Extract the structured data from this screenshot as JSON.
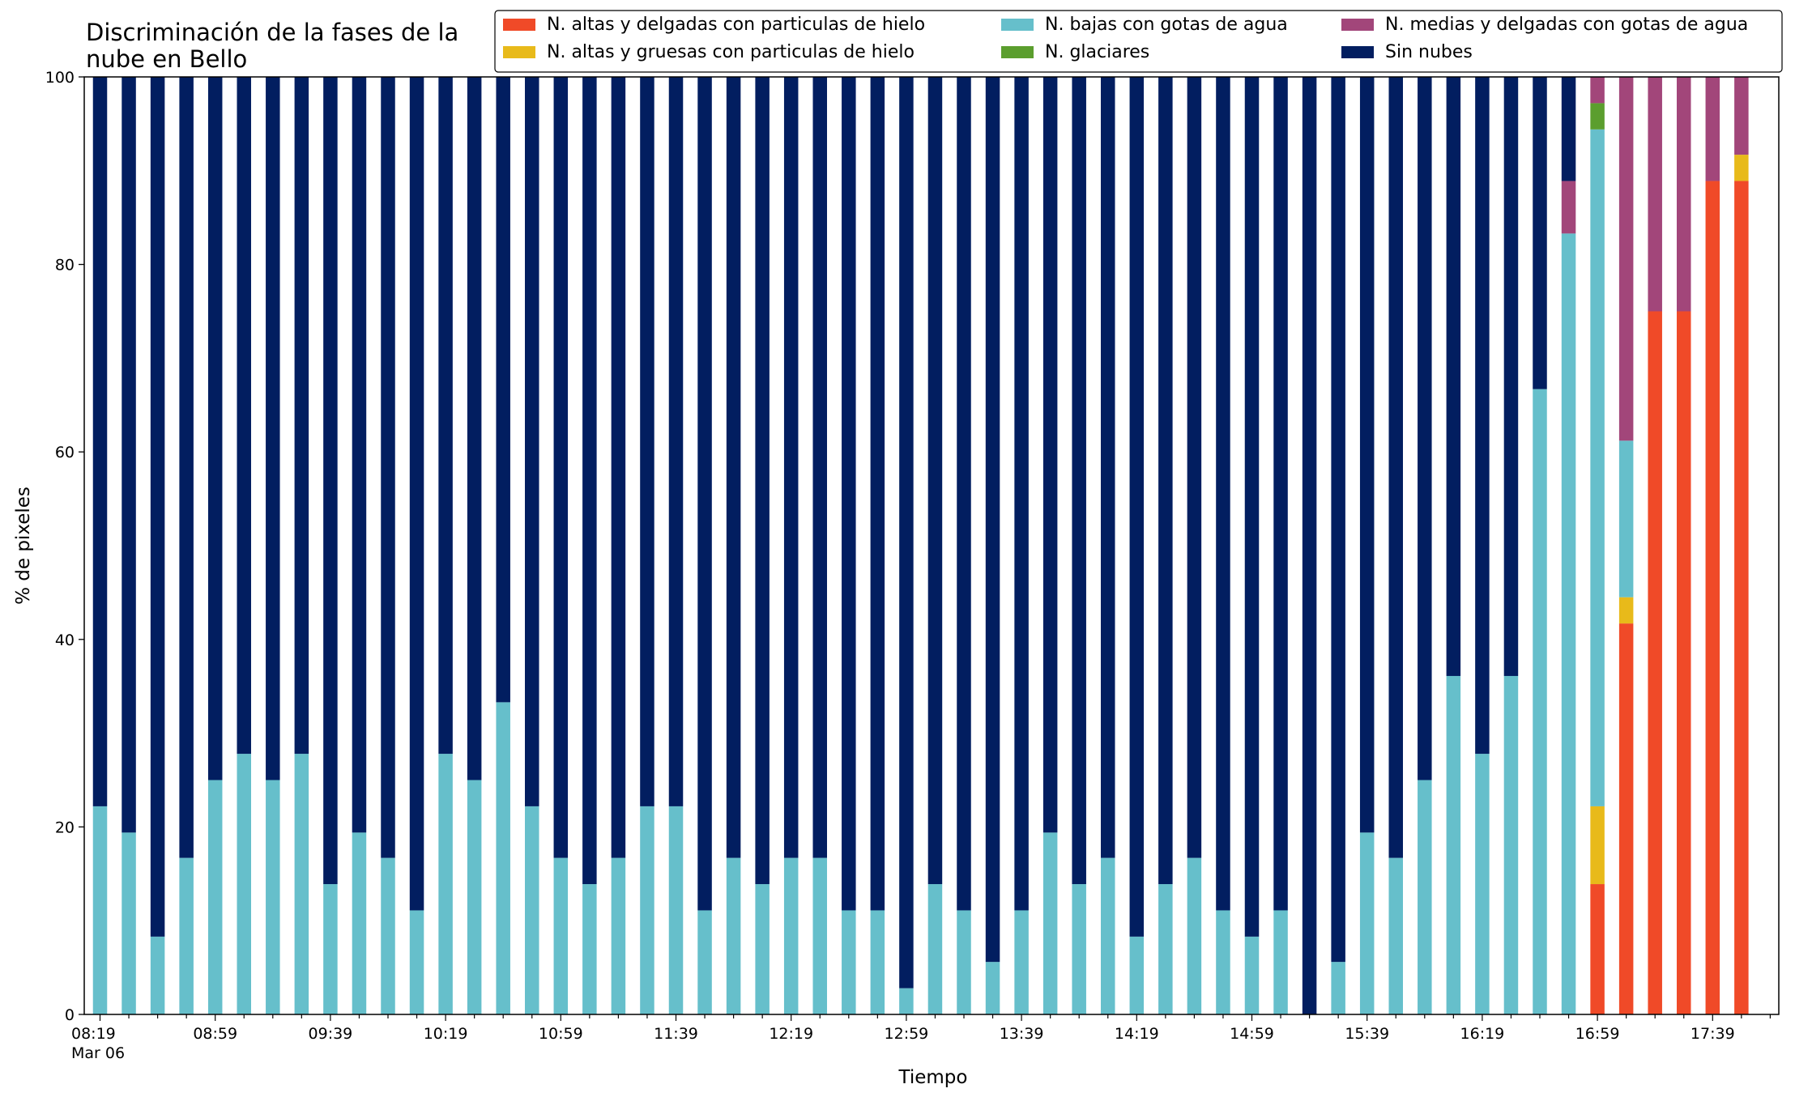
{
  "chart_data": {
    "type": "bar",
    "stacked": true,
    "title": "Discriminación de la fases de la nube en Bello",
    "title_lines": [
      "Discriminación de la fases de la",
      "nube en Bello"
    ],
    "xlabel": "Tiempo",
    "ylabel": "% de pixeles",
    "ylim": [
      0,
      100
    ],
    "yticks": [
      "0",
      "20",
      "40",
      "60",
      "80",
      "100"
    ],
    "grid": false,
    "legend_position": "top-right",
    "legend_columns": 3,
    "x_tick_labels": [
      "08:19",
      "08:59",
      "09:39",
      "10:19",
      "10:59",
      "11:39",
      "12:19",
      "12:59",
      "13:39",
      "14:19",
      "14:59",
      "15:39",
      "16:19",
      "16:59",
      "17:39"
    ],
    "x_date_label": "Mar 06",
    "categories": [
      "08:19",
      "08:29",
      "08:39",
      "08:49",
      "08:59",
      "09:09",
      "09:19",
      "09:29",
      "09:39",
      "09:49",
      "09:59",
      "10:09",
      "10:19",
      "10:29",
      "10:39",
      "10:49",
      "10:59",
      "11:09",
      "11:19",
      "11:29",
      "11:39",
      "11:49",
      "11:59",
      "12:09",
      "12:19",
      "12:29",
      "12:39",
      "12:49",
      "12:59",
      "13:09",
      "13:19",
      "13:29",
      "13:39",
      "13:49",
      "13:59",
      "14:09",
      "14:19",
      "14:29",
      "14:39",
      "14:49",
      "14:59",
      "15:09",
      "15:19",
      "15:29",
      "15:39",
      "15:49",
      "15:59",
      "16:09",
      "16:19",
      "16:29",
      "16:39",
      "16:49",
      "16:59",
      "17:09",
      "17:19",
      "17:29",
      "17:39",
      "17:49"
    ],
    "series": [
      {
        "name": "N. altas y delgadas con particulas de hielo",
        "color": "#f04a28",
        "values": [
          0,
          0,
          0,
          0,
          0,
          0,
          0,
          0,
          0,
          0,
          0,
          0,
          0,
          0,
          0,
          0,
          0,
          0,
          0,
          0,
          0,
          0,
          0,
          0,
          0,
          0,
          0,
          0,
          0,
          0,
          0,
          0,
          0,
          0,
          0,
          0,
          0,
          0,
          0,
          0,
          0,
          0,
          0,
          0,
          0,
          0,
          0,
          0,
          0,
          0,
          0,
          0,
          13.9,
          41.7,
          75,
          75,
          88.9,
          88.9
        ]
      },
      {
        "name": "N. altas y gruesas con particulas de hielo",
        "color": "#e8ba1a",
        "values": [
          0,
          0,
          0,
          0,
          0,
          0,
          0,
          0,
          0,
          0,
          0,
          0,
          0,
          0,
          0,
          0,
          0,
          0,
          0,
          0,
          0,
          0,
          0,
          0,
          0,
          0,
          0,
          0,
          0,
          0,
          0,
          0,
          0,
          0,
          0,
          0,
          0,
          0,
          0,
          0,
          0,
          0,
          0,
          0,
          0,
          0,
          0,
          0,
          0,
          0,
          0,
          0,
          8.3,
          2.8,
          0,
          0,
          0,
          2.8
        ]
      },
      {
        "name": "N. bajas con gotas de agua",
        "color": "#66bfcb",
        "values": [
          22.2,
          19.4,
          8.3,
          16.7,
          25,
          27.8,
          25,
          27.8,
          13.9,
          19.4,
          16.7,
          11.1,
          27.8,
          25,
          33.3,
          22.2,
          16.7,
          13.9,
          16.7,
          22.2,
          22.2,
          11.1,
          16.7,
          13.9,
          16.7,
          16.7,
          11.1,
          11.1,
          2.8,
          13.9,
          11.1,
          5.6,
          11.1,
          19.4,
          13.9,
          16.7,
          8.3,
          13.9,
          16.7,
          11.1,
          8.3,
          11.1,
          0,
          5.6,
          19.4,
          16.7,
          25,
          36.1,
          27.8,
          36.1,
          66.7,
          83.3,
          72.2,
          16.7,
          0,
          0,
          0,
          0
        ]
      },
      {
        "name": "N. glaciares",
        "color": "#5b9e2e",
        "values": [
          0,
          0,
          0,
          0,
          0,
          0,
          0,
          0,
          0,
          0,
          0,
          0,
          0,
          0,
          0,
          0,
          0,
          0,
          0,
          0,
          0,
          0,
          0,
          0,
          0,
          0,
          0,
          0,
          0,
          0,
          0,
          0,
          0,
          0,
          0,
          0,
          0,
          0,
          0,
          0,
          0,
          0,
          0,
          0,
          0,
          0,
          0,
          0,
          0,
          0,
          0,
          0,
          2.8,
          0,
          0,
          0,
          0,
          0
        ]
      },
      {
        "name": "N. medias y delgadas con gotas de agua",
        "color": "#a2467a",
        "values": [
          0,
          0,
          0,
          0,
          0,
          0,
          0,
          0,
          0,
          0,
          0,
          0,
          0,
          0,
          0,
          0,
          0,
          0,
          0,
          0,
          0,
          0,
          0,
          0,
          0,
          0,
          0,
          0,
          0,
          0,
          0,
          0,
          0,
          0,
          0,
          0,
          0,
          0,
          0,
          0,
          0,
          0,
          0,
          0,
          0,
          0,
          0,
          0,
          0,
          0,
          0,
          5.6,
          2.8,
          38.9,
          25,
          25,
          11.1,
          8.3
        ]
      },
      {
        "name": "Sin nubes",
        "color": "#021e60",
        "values": [
          77.8,
          80.6,
          91.7,
          83.3,
          75,
          72.2,
          75,
          72.2,
          86.1,
          80.6,
          83.3,
          88.9,
          72.2,
          75,
          66.7,
          77.8,
          83.3,
          86.1,
          83.3,
          77.8,
          77.8,
          88.9,
          83.3,
          86.1,
          83.3,
          83.3,
          88.9,
          88.9,
          97.2,
          86.1,
          88.9,
          94.4,
          88.9,
          80.6,
          86.1,
          83.3,
          91.7,
          86.1,
          83.3,
          88.9,
          91.7,
          88.9,
          100,
          94.4,
          80.6,
          83.3,
          75,
          63.9,
          72.2,
          63.9,
          33.3,
          11.1,
          0,
          0,
          0,
          0,
          0,
          0
        ]
      }
    ]
  }
}
